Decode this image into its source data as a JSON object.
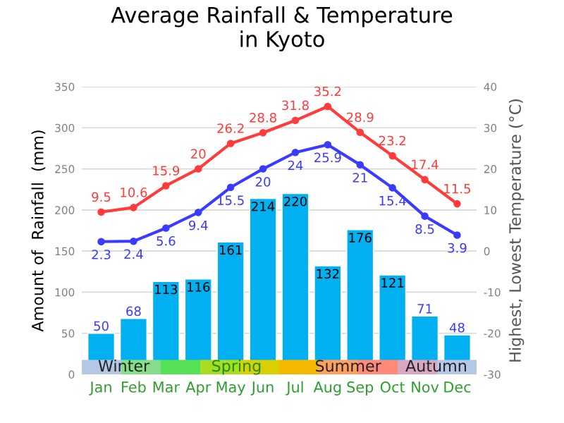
{
  "chart_data": {
    "type": "bar",
    "title": "Average Rainfall & Temperature\nin Kyoto",
    "categories": [
      "Jan",
      "Feb",
      "Mar",
      "Apr",
      "May",
      "Jun",
      "Jul",
      "Aug",
      "Sep",
      "Oct",
      "Nov",
      "Dec"
    ],
    "series": [
      {
        "color": "#00b0f0",
        "values": [
          50,
          68,
          113,
          116,
          161,
          214,
          220,
          132,
          176,
          121,
          71,
          48
        ]
      },
      {
        "type": "line",
        "axis": "y2",
        "color": "#ff3b3b",
        "values": [
          9.5,
          10.6,
          15.9,
          20,
          26.2,
          28.8,
          31.8,
          35.2,
          28.9,
          23.2,
          17.4,
          11.5
        ]
      },
      {
        "type": "line",
        "axis": "y2",
        "color": "#3b3bff",
        "values": [
          2.3,
          2.4,
          5.6,
          9.4,
          15.5,
          20,
          24,
          25.9,
          21,
          15.4,
          8.5,
          3.9
        ]
      }
    ],
    "ylabel": "Amount of  Rainfall  (mm)",
    "y2label": "Highest, Lowest Temperature (°C)",
    "ylim": [
      0,
      350
    ],
    "yticks": [
      0,
      50,
      100,
      150,
      200,
      250,
      300,
      350
    ],
    "y2lim": [
      -30,
      40
    ],
    "y2ticks": [
      -30,
      -20,
      -10,
      0,
      10,
      20,
      30,
      40
    ],
    "annotations": [
      "Winter",
      "Spring",
      "Summer",
      "Autumn"
    ],
    "data_labels": true,
    "marker": "circle",
    "grid": "y",
    "legend": false
  }
}
